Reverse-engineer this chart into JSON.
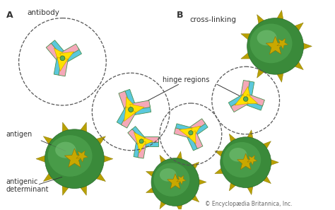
{
  "background_color": "#ffffff",
  "antibody_yellow": "#FFE000",
  "antibody_cyan": "#5BC8DC",
  "antibody_pink": "#F5A8B8",
  "antibody_green_edge": "#4a9050",
  "antigen_green_dark": "#3a8a3a",
  "antigen_green_mid": "#52a852",
  "antigen_green_light": "#7dc87d",
  "antigen_spike": "#b8a000",
  "antigen_star": "#c8a800",
  "label_A": "A",
  "label_B": "B",
  "label_antibody": "antibody",
  "label_cross_linking": "cross-linking",
  "label_hinge_regions": "hinge regions",
  "label_antigen": "antigen",
  "label_antigenic": "antigenic\ndeterminant",
  "label_copyright": "© Encyclopædia Britannica, Inc."
}
